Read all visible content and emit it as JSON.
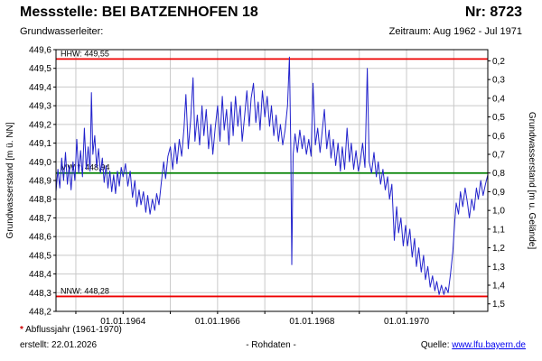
{
  "header": {
    "title": "Messstelle: BEI BATZENHOFEN 18",
    "number": "Nr: 8723",
    "aquifer_label": "Grundwasserleiter:",
    "period": "Zeitraum: Aug 1962 - Jul 1971"
  },
  "footer": {
    "note_star": "*",
    "note_text": "Abflussjahr (1961-1970)",
    "created": "erstellt: 22.01.2026",
    "center_label": "- Rohdaten -",
    "source_label": "Quelle:",
    "source_link": "www.lfu.bayern.de"
  },
  "chart_data": {
    "type": "line",
    "title": "",
    "xlabel": "",
    "ylabel_left": "Grundwasserstand [m ü. NN]",
    "ylabel_right": "Grundwasserstand [m u. Gelände]",
    "y_left_range": [
      448.2,
      449.6
    ],
    "y_left_tick_labels": [
      "449,6",
      "449,5",
      "449,4",
      "449,3",
      "449,2",
      "449,1",
      "449,0",
      "448,9",
      "448,8",
      "448,7",
      "448,6",
      "448,5",
      "448,4",
      "448,3",
      "448,2"
    ],
    "y_right_tick_labels": [
      "0,2",
      "0,3",
      "0,4",
      "0,5",
      "0,6",
      "0,7",
      "0,8",
      "0,9",
      "1,0",
      "1,1",
      "1,2",
      "1,3",
      "1,4",
      "1,5"
    ],
    "right_axis_ground_elevation": 449.74,
    "x_range_years": [
      1962.58,
      1971.72
    ],
    "x_gridline_years": [
      1963,
      1964,
      1965,
      1966,
      1967,
      1968,
      1969,
      1970,
      1971
    ],
    "x_tick_labels": [
      {
        "year": 1964,
        "label": "01.01.1964"
      },
      {
        "year": 1966,
        "label": "01.01.1966"
      },
      {
        "year": 1968,
        "label": "01.01.1968"
      },
      {
        "year": 1970,
        "label": "01.01.1970"
      }
    ],
    "grid": true,
    "colors": {
      "grid": "#c9c9c9",
      "border": "#000000"
    },
    "reference_lines": [
      {
        "name": "HHW",
        "label": "HHW: 449,55",
        "value": 449.55,
        "color": "#ee0000"
      },
      {
        "name": "MW",
        "label": "MW *: 448,94",
        "value": 448.94,
        "color": "#008000"
      },
      {
        "name": "NNW",
        "label": "NNW: 448,28",
        "value": 448.28,
        "color": "#ee0000"
      }
    ],
    "series": [
      {
        "name": "Grundwasserstand Rohdaten",
        "color": "#2222cc",
        "points": [
          [
            1962.58,
            448.84
          ],
          [
            1962.62,
            448.96
          ],
          [
            1962.66,
            448.86
          ],
          [
            1962.7,
            449.02
          ],
          [
            1962.74,
            448.9
          ],
          [
            1962.78,
            449.05
          ],
          [
            1962.82,
            448.88
          ],
          [
            1962.86,
            448.98
          ],
          [
            1962.9,
            448.85
          ],
          [
            1962.94,
            449.0
          ],
          [
            1962.98,
            448.9
          ],
          [
            1963.02,
            449.12
          ],
          [
            1963.06,
            448.94
          ],
          [
            1963.1,
            449.06
          ],
          [
            1963.14,
            448.92
          ],
          [
            1963.18,
            449.18
          ],
          [
            1963.22,
            448.96
          ],
          [
            1963.26,
            449.08
          ],
          [
            1963.3,
            448.95
          ],
          [
            1963.33,
            449.37
          ],
          [
            1963.36,
            449.04
          ],
          [
            1963.4,
            449.14
          ],
          [
            1963.44,
            448.97
          ],
          [
            1963.48,
            449.07
          ],
          [
            1963.52,
            448.94
          ],
          [
            1963.56,
            449.02
          ],
          [
            1963.6,
            448.89
          ],
          [
            1963.64,
            448.98
          ],
          [
            1963.68,
            448.86
          ],
          [
            1963.72,
            448.95
          ],
          [
            1963.76,
            448.84
          ],
          [
            1963.8,
            448.93
          ],
          [
            1963.84,
            448.83
          ],
          [
            1963.88,
            448.95
          ],
          [
            1963.92,
            448.87
          ],
          [
            1963.96,
            448.97
          ],
          [
            1964.0,
            448.92
          ],
          [
            1964.05,
            448.99
          ],
          [
            1964.1,
            448.87
          ],
          [
            1964.15,
            448.95
          ],
          [
            1964.2,
            448.81
          ],
          [
            1964.25,
            448.9
          ],
          [
            1964.29,
            448.76
          ],
          [
            1964.34,
            448.85
          ],
          [
            1964.38,
            448.77
          ],
          [
            1964.43,
            448.84
          ],
          [
            1964.48,
            448.73
          ],
          [
            1964.52,
            448.82
          ],
          [
            1964.57,
            448.72
          ],
          [
            1964.62,
            448.8
          ],
          [
            1964.67,
            448.74
          ],
          [
            1964.71,
            448.83
          ],
          [
            1964.76,
            448.77
          ],
          [
            1964.81,
            448.89
          ],
          [
            1964.86,
            449.0
          ],
          [
            1964.9,
            448.91
          ],
          [
            1964.95,
            449.03
          ],
          [
            1965.0,
            449.08
          ],
          [
            1965.05,
            448.96
          ],
          [
            1965.1,
            449.1
          ],
          [
            1965.14,
            448.99
          ],
          [
            1965.19,
            449.12
          ],
          [
            1965.24,
            449.03
          ],
          [
            1965.29,
            449.18
          ],
          [
            1965.33,
            449.36
          ],
          [
            1965.38,
            449.07
          ],
          [
            1965.43,
            449.22
          ],
          [
            1965.48,
            449.45
          ],
          [
            1965.52,
            449.11
          ],
          [
            1965.57,
            449.25
          ],
          [
            1965.62,
            449.09
          ],
          [
            1965.67,
            449.3
          ],
          [
            1965.71,
            449.14
          ],
          [
            1965.76,
            449.28
          ],
          [
            1965.81,
            449.07
          ],
          [
            1965.86,
            449.2
          ],
          [
            1965.9,
            449.04
          ],
          [
            1965.95,
            449.18
          ],
          [
            1966.0,
            449.3
          ],
          [
            1966.05,
            449.11
          ],
          [
            1966.1,
            449.35
          ],
          [
            1966.14,
            449.17
          ],
          [
            1966.19,
            449.28
          ],
          [
            1966.24,
            449.09
          ],
          [
            1966.29,
            449.32
          ],
          [
            1966.33,
            449.14
          ],
          [
            1966.38,
            449.35
          ],
          [
            1966.43,
            449.19
          ],
          [
            1966.48,
            449.3
          ],
          [
            1966.52,
            449.11
          ],
          [
            1966.57,
            449.24
          ],
          [
            1966.62,
            449.38
          ],
          [
            1966.67,
            449.19
          ],
          [
            1966.71,
            449.34
          ],
          [
            1966.76,
            449.42
          ],
          [
            1966.81,
            449.21
          ],
          [
            1966.86,
            449.32
          ],
          [
            1966.9,
            449.17
          ],
          [
            1966.95,
            449.38
          ],
          [
            1967.0,
            449.24
          ],
          [
            1967.05,
            449.35
          ],
          [
            1967.1,
            449.19
          ],
          [
            1967.14,
            449.3
          ],
          [
            1967.19,
            449.14
          ],
          [
            1967.24,
            449.25
          ],
          [
            1967.29,
            449.11
          ],
          [
            1967.33,
            449.2
          ],
          [
            1967.38,
            449.09
          ],
          [
            1967.43,
            449.17
          ],
          [
            1967.48,
            449.3
          ],
          [
            1967.52,
            449.56
          ],
          [
            1967.55,
            449.08
          ],
          [
            1967.57,
            448.45
          ],
          [
            1967.6,
            449.04
          ],
          [
            1967.64,
            449.15
          ],
          [
            1967.69,
            449.05
          ],
          [
            1967.74,
            449.17
          ],
          [
            1967.79,
            449.07
          ],
          [
            1967.83,
            449.14
          ],
          [
            1967.88,
            449.04
          ],
          [
            1967.93,
            449.12
          ],
          [
            1967.98,
            449.03
          ],
          [
            1968.02,
            449.42
          ],
          [
            1968.07,
            449.09
          ],
          [
            1968.12,
            449.18
          ],
          [
            1968.17,
            449.05
          ],
          [
            1968.21,
            449.15
          ],
          [
            1968.26,
            449.28
          ],
          [
            1968.31,
            449.07
          ],
          [
            1968.36,
            449.17
          ],
          [
            1968.4,
            449.02
          ],
          [
            1968.45,
            449.12
          ],
          [
            1968.5,
            448.98
          ],
          [
            1968.55,
            449.1
          ],
          [
            1968.6,
            448.95
          ],
          [
            1968.64,
            449.08
          ],
          [
            1968.69,
            448.96
          ],
          [
            1968.74,
            449.18
          ],
          [
            1968.79,
            449.0
          ],
          [
            1968.83,
            449.1
          ],
          [
            1968.88,
            448.96
          ],
          [
            1968.93,
            449.06
          ],
          [
            1968.98,
            448.95
          ],
          [
            1969.02,
            449.0
          ],
          [
            1969.07,
            449.1
          ],
          [
            1969.12,
            448.97
          ],
          [
            1969.17,
            449.5
          ],
          [
            1969.21,
            449.0
          ],
          [
            1969.26,
            448.94
          ],
          [
            1969.31,
            449.05
          ],
          [
            1969.36,
            448.92
          ],
          [
            1969.4,
            449.0
          ],
          [
            1969.45,
            448.88
          ],
          [
            1969.5,
            448.96
          ],
          [
            1969.55,
            448.85
          ],
          [
            1969.6,
            448.92
          ],
          [
            1969.64,
            448.8
          ],
          [
            1969.69,
            448.88
          ],
          [
            1969.74,
            448.58
          ],
          [
            1969.79,
            448.76
          ],
          [
            1969.83,
            448.62
          ],
          [
            1969.88,
            448.7
          ],
          [
            1969.93,
            448.55
          ],
          [
            1969.98,
            448.66
          ],
          [
            1970.02,
            448.55
          ],
          [
            1970.07,
            448.64
          ],
          [
            1970.12,
            448.49
          ],
          [
            1970.17,
            448.59
          ],
          [
            1970.21,
            448.44
          ],
          [
            1970.26,
            448.54
          ],
          [
            1970.31,
            448.41
          ],
          [
            1970.36,
            448.5
          ],
          [
            1970.4,
            448.37
          ],
          [
            1970.45,
            448.44
          ],
          [
            1970.5,
            448.33
          ],
          [
            1970.55,
            448.39
          ],
          [
            1970.6,
            448.31
          ],
          [
            1970.64,
            448.36
          ],
          [
            1970.69,
            448.29
          ],
          [
            1970.74,
            448.34
          ],
          [
            1970.79,
            448.29
          ],
          [
            1970.83,
            448.33
          ],
          [
            1970.88,
            448.3
          ],
          [
            1970.93,
            448.4
          ],
          [
            1970.98,
            448.52
          ],
          [
            1971.02,
            448.68
          ],
          [
            1971.05,
            448.78
          ],
          [
            1971.1,
            448.72
          ],
          [
            1971.14,
            448.84
          ],
          [
            1971.19,
            448.76
          ],
          [
            1971.24,
            448.86
          ],
          [
            1971.29,
            448.78
          ],
          [
            1971.33,
            448.7
          ],
          [
            1971.38,
            448.8
          ],
          [
            1971.43,
            448.74
          ],
          [
            1971.48,
            448.86
          ],
          [
            1971.52,
            448.8
          ],
          [
            1971.57,
            448.9
          ],
          [
            1971.62,
            448.82
          ],
          [
            1971.67,
            448.88
          ],
          [
            1971.72,
            448.93
          ]
        ]
      }
    ]
  }
}
